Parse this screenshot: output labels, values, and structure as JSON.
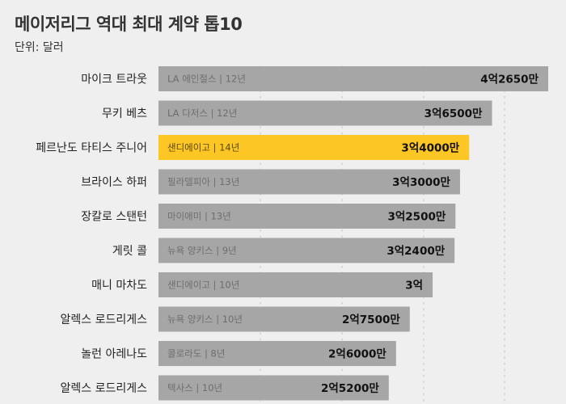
{
  "chart_data": {
    "type": "bar",
    "orientation": "horizontal",
    "title": "메이저리그 역대 최대 계약 톱10",
    "subtitle": "단위: 달러",
    "categories": [
      "마이크 트라웃",
      "무키 베츠",
      "페르난도 타티스 주니어",
      "브라이스 하퍼",
      "장칼로 스탠턴",
      "게릿 콜",
      "매니 마차도",
      "알렉스 로드리게스",
      "놀런 아레나도",
      "알렉스 로드리게스"
    ],
    "notes": [
      "LA 에인절스 | 12년",
      "LA 다저스 | 12년",
      "샌디에이고 | 14년",
      "필라델피아 | 13년",
      "마이애미 | 13년",
      "뉴욕 양키스 | 9년",
      "샌디에이고 | 10년",
      "뉴욕 양키스 | 10년",
      "콜로라도 | 8년",
      "텍사스 | 10년"
    ],
    "value_labels": [
      "4억2650만",
      "3억6500만",
      "3억4000만",
      "3억3000만",
      "3억2500만",
      "3억2400만",
      "3억",
      "2억7500만",
      "2억6000만",
      "2억5200만"
    ],
    "values": [
      426500000,
      365000000,
      340000000,
      330000000,
      325000000,
      324000000,
      300000000,
      275000000,
      260000000,
      252000000
    ],
    "highlight_index": 2,
    "colors": {
      "bar": "#a6a6a6",
      "highlight": "#fcc624",
      "background": "#efefef",
      "grid": "#d2d2d2"
    },
    "grid": true
  }
}
